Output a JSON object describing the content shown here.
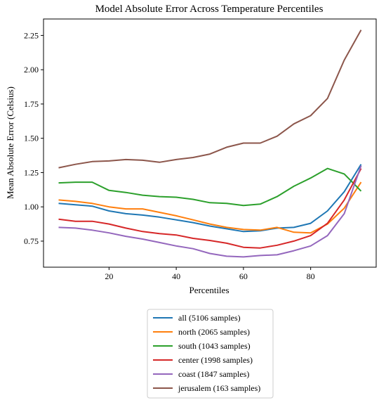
{
  "chart_data": {
    "type": "line",
    "title": "Model Absolute Error Across Temperature Percentiles",
    "xlabel": "Percentiles",
    "ylabel": "Mean Absolute Error (Celsius)",
    "xlim": [
      0.5,
      99.5
    ],
    "ylim": [
      0.56,
      2.37
    ],
    "x_ticks": [
      20,
      40,
      60,
      80
    ],
    "y_ticks": [
      0.75,
      1.0,
      1.25,
      1.5,
      1.75,
      2.0,
      2.25
    ],
    "y_tick_labels": [
      "0.75",
      "1.00",
      "1.25",
      "1.50",
      "1.75",
      "2.00",
      "2.25"
    ],
    "grid": false,
    "legend_position": "below",
    "x": [
      5,
      10,
      15,
      20,
      25,
      30,
      35,
      40,
      45,
      50,
      55,
      60,
      65,
      70,
      75,
      80,
      85,
      90,
      95
    ],
    "series": [
      {
        "name": "all (5106 samples)",
        "color": "#1f77b4",
        "values": [
          1.025,
          1.015,
          1.005,
          0.97,
          0.95,
          0.94,
          0.925,
          0.905,
          0.885,
          0.86,
          0.84,
          0.82,
          0.825,
          0.845,
          0.85,
          0.88,
          0.97,
          1.11,
          1.31
        ]
      },
      {
        "name": "north (2065 samples)",
        "color": "#ff7f0e",
        "values": [
          1.05,
          1.04,
          1.025,
          1.0,
          0.985,
          0.985,
          0.96,
          0.935,
          0.905,
          0.875,
          0.85,
          0.835,
          0.83,
          0.85,
          0.815,
          0.81,
          0.875,
          0.99,
          1.18
        ]
      },
      {
        "name": "south (1043 samples)",
        "color": "#2ca02c",
        "values": [
          1.175,
          1.18,
          1.18,
          1.12,
          1.105,
          1.085,
          1.075,
          1.07,
          1.055,
          1.03,
          1.025,
          1.01,
          1.02,
          1.075,
          1.15,
          1.21,
          1.28,
          1.24,
          1.115
        ]
      },
      {
        "name": "center (1998 samples)",
        "color": "#d62728",
        "values": [
          0.91,
          0.895,
          0.895,
          0.875,
          0.845,
          0.82,
          0.805,
          0.795,
          0.77,
          0.755,
          0.735,
          0.705,
          0.7,
          0.72,
          0.75,
          0.79,
          0.88,
          1.05,
          1.28
        ]
      },
      {
        "name": "coast (1847 samples)",
        "color": "#9467bd",
        "values": [
          0.85,
          0.845,
          0.83,
          0.81,
          0.785,
          0.765,
          0.74,
          0.715,
          0.695,
          0.66,
          0.64,
          0.635,
          0.645,
          0.65,
          0.68,
          0.715,
          0.79,
          0.95,
          1.3
        ]
      },
      {
        "name": "jerusalem (163 samples)",
        "color": "#8c564b",
        "values": [
          1.285,
          1.31,
          1.33,
          1.335,
          1.345,
          1.34,
          1.325,
          1.345,
          1.36,
          1.385,
          1.435,
          1.465,
          1.465,
          1.515,
          1.605,
          1.665,
          1.79,
          2.07,
          2.29
        ]
      }
    ]
  }
}
